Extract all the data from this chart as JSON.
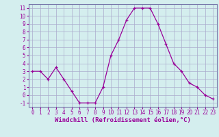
{
  "hours": [
    0,
    1,
    2,
    3,
    4,
    5,
    6,
    7,
    8,
    9,
    10,
    11,
    12,
    13,
    14,
    15,
    16,
    17,
    18,
    19,
    20,
    21,
    22,
    23
  ],
  "values": [
    3,
    3,
    2,
    3.5,
    2,
    0.5,
    -1,
    -1,
    -1,
    1,
    5,
    7,
    9.5,
    11,
    11,
    11,
    9,
    6.5,
    4,
    3,
    1.5,
    1,
    0,
    -0.5
  ],
  "line_color": "#990099",
  "marker": "+",
  "bg_color": "#d4eeee",
  "grid_color": "#aaaacc",
  "xlabel": "Windchill (Refroidissement éolien,°C)",
  "ylim": [
    -1.5,
    11.5
  ],
  "xlim": [
    -0.5,
    23.5
  ],
  "yticks": [
    -1,
    0,
    1,
    2,
    3,
    4,
    5,
    6,
    7,
    8,
    9,
    10,
    11
  ],
  "xticks": [
    0,
    1,
    2,
    3,
    4,
    5,
    6,
    7,
    8,
    9,
    10,
    11,
    12,
    13,
    14,
    15,
    16,
    17,
    18,
    19,
    20,
    21,
    22,
    23
  ],
  "xlabel_fontsize": 6.5,
  "tick_fontsize": 5.5,
  "spine_color": "#7777aa",
  "xlabel_color": "#990099"
}
